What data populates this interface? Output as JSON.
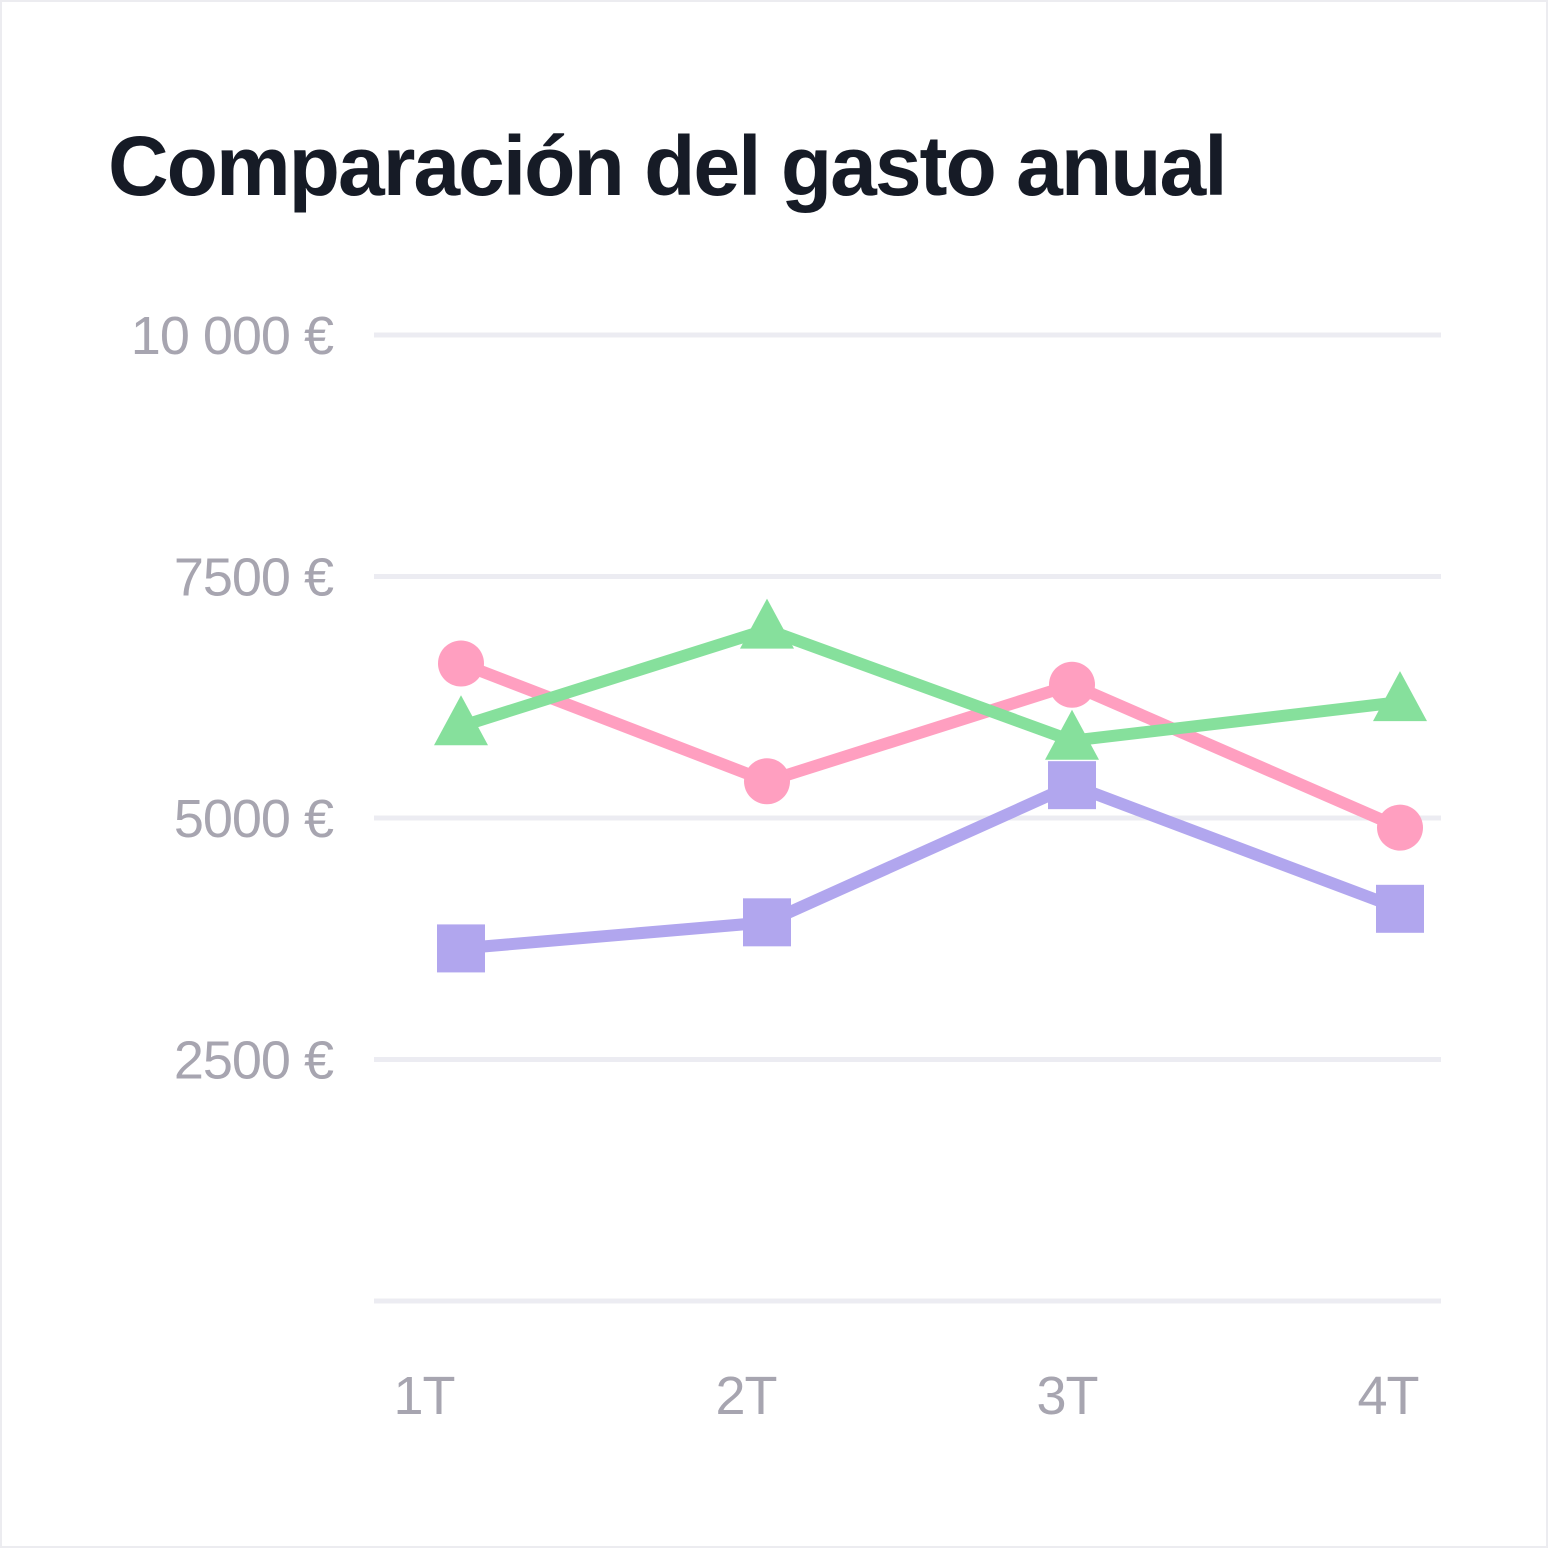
{
  "chart_data": {
    "type": "line",
    "title": "Comparación del gasto anual",
    "xlabel": "",
    "ylabel": "",
    "categories": [
      "1T",
      "2T",
      "3T",
      "4T"
    ],
    "yticks": [
      {
        "value": 10000,
        "label": "10 000 €"
      },
      {
        "value": 7500,
        "label": "7500 €"
      },
      {
        "value": 5000,
        "label": "5000 €"
      },
      {
        "value": 2500,
        "label": "2500 €"
      },
      {
        "value": 0,
        "label": ""
      }
    ],
    "ylim": [
      0,
      10000
    ],
    "grid": true,
    "legend": "none",
    "series": [
      {
        "marker": "circle",
        "color": "#ff9fc0",
        "values": [
          6600,
          5380,
          6380,
          4900
        ]
      },
      {
        "marker": "triangle",
        "color": "#86e09c",
        "values": [
          5950,
          6950,
          5800,
          6200
        ]
      },
      {
        "marker": "square",
        "color": "#b1a6ee",
        "values": [
          3650,
          3920,
          5340,
          4060
        ]
      }
    ],
    "gridline_color": "#ececf2"
  }
}
